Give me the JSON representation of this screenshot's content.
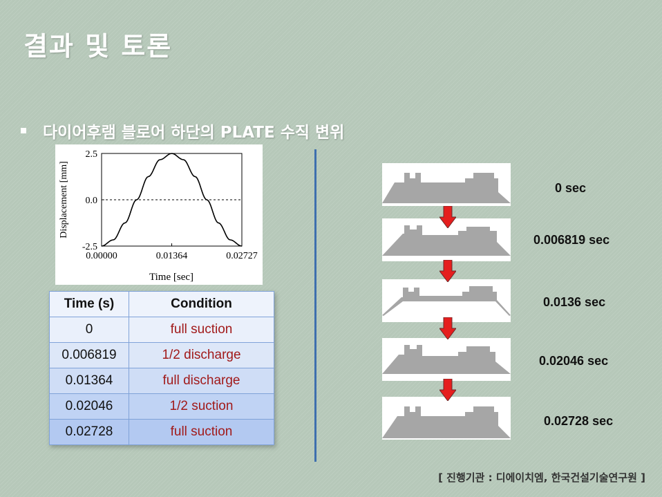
{
  "slide": {
    "title": "결과 및 토론",
    "bullet": "다이어후램  블로어 하단의 PLATE 수직 변위",
    "footer": "[ 진행기관 : 디에이치엠, 한국건설기술연구원 ]"
  },
  "chart_data": {
    "type": "line",
    "xlabel": "Time [sec]",
    "ylabel": "Displacement [mm]",
    "xlim": [
      0,
      0.02727
    ],
    "ylim": [
      -2.5,
      2.5
    ],
    "x_ticks": [
      "0.00000",
      "0.01364",
      "0.02727"
    ],
    "y_ticks": [
      "2.5",
      "0.0",
      "-2.5"
    ],
    "x": [
      0,
      0.002273,
      0.004545,
      0.006818,
      0.009091,
      0.011364,
      0.01364,
      0.015909,
      0.018182,
      0.020455,
      0.022727,
      0.025,
      0.02727
    ],
    "series": [
      {
        "values": [
          -2.5,
          -2.165,
          -1.25,
          0,
          1.25,
          2.165,
          2.5,
          2.165,
          1.25,
          0,
          -1.25,
          -2.165,
          -2.5
        ]
      }
    ],
    "reference_line": {
      "y": 0,
      "style": "dashed"
    },
    "grid": false
  },
  "table": {
    "headers": [
      "Time (s)",
      "Condition"
    ],
    "rows": [
      {
        "time": "0",
        "condition": "full suction"
      },
      {
        "time": "0.006819",
        "condition": "1/2 discharge"
      },
      {
        "time": "0.01364",
        "condition": "full discharge"
      },
      {
        "time": "0.02046",
        "condition": "1/2 suction"
      },
      {
        "time": "0.02728",
        "condition": "full suction"
      }
    ],
    "row_colors": [
      "#eaf0fb",
      "#dde7f8",
      "#cfddf6",
      "#c0d3f4",
      "#b3c9f1"
    ],
    "header_color": "#eef3fc"
  },
  "states": [
    {
      "label": "0 sec"
    },
    {
      "label": "0.006819 sec"
    },
    {
      "label": "0.0136 sec"
    },
    {
      "label": "0.02046 sec"
    },
    {
      "label": "0.02728 sec"
    }
  ],
  "colors": {
    "plate_gray": "#a6a6a6",
    "arrow_red": "#e51e1e",
    "divider_blue": "#3e6fae",
    "condition_red": "#a11a1a"
  }
}
